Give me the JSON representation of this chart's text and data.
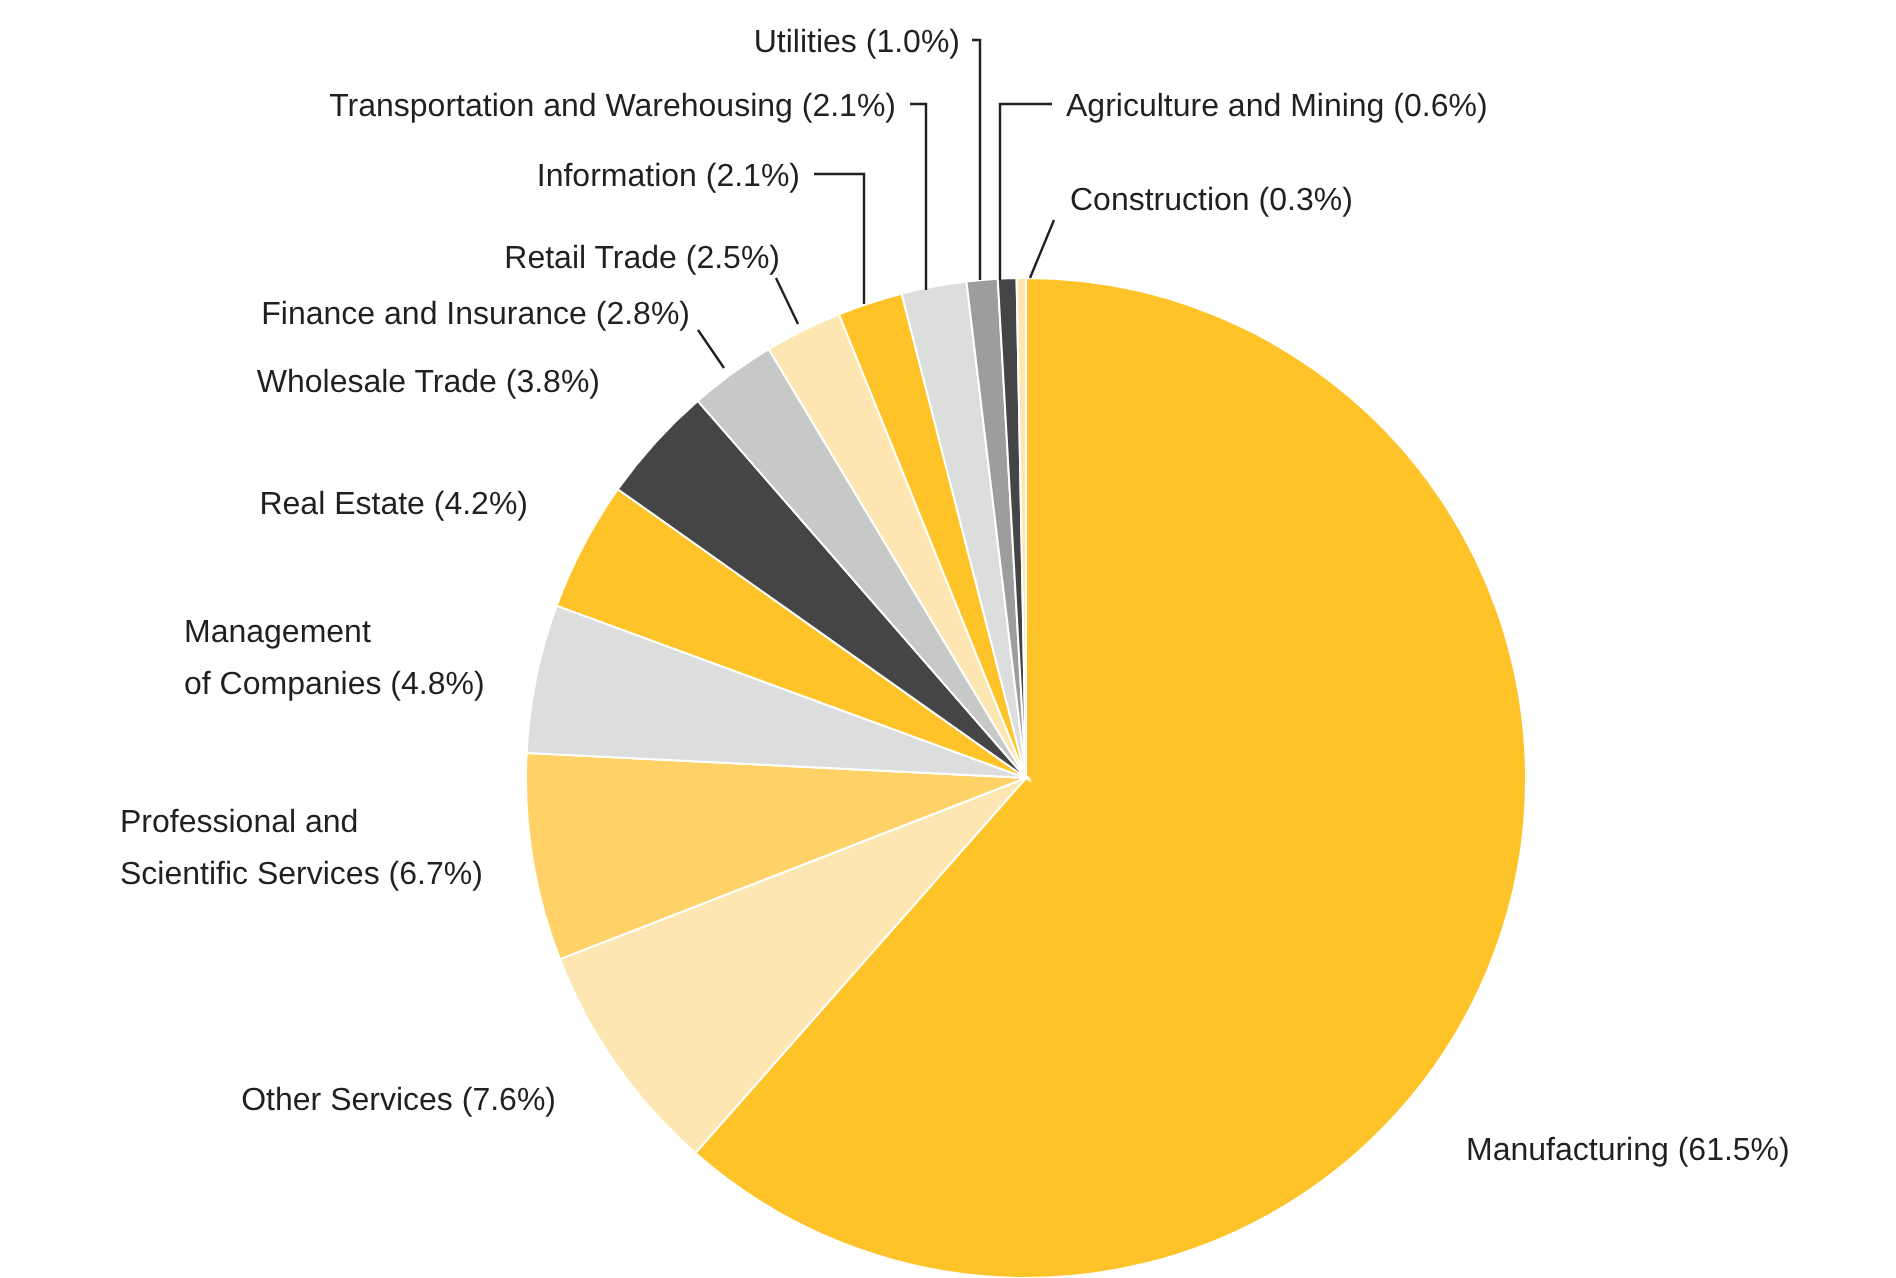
{
  "chart_data": {
    "type": "pie",
    "categories": [
      "Manufacturing",
      "Other Services",
      "Professional and Scientific Services",
      "Management of Companies",
      "Real Estate",
      "Wholesale Trade",
      "Finance and Insurance",
      "Retail Trade",
      "Information",
      "Transportation and Warehousing",
      "Utilities",
      "Agriculture and Mining",
      "Construction"
    ],
    "values": [
      61.5,
      7.6,
      6.7,
      4.8,
      4.2,
      3.8,
      2.8,
      2.5,
      2.1,
      2.1,
      1.0,
      0.6,
      0.3
    ],
    "value_labels": [
      "(61.5%)",
      "(7.6%)",
      "(6.7%)",
      "(4.8%)",
      "(4.2%)",
      "(3.8%)",
      "(2.8%)",
      "(2.5%)",
      "(2.1%)",
      "(2.1%)",
      "(1.0%)",
      "(0.6%)",
      "(0.3%)"
    ],
    "colors": [
      "#fdc329",
      "#fee6b3",
      "#fed266",
      "#dcdddd",
      "#fdc329",
      "#454547",
      "#c7c8c8",
      "#fee6b3",
      "#fdc329",
      "#dcdddd",
      "#9d9d9d",
      "#454547",
      "#fee6b3"
    ],
    "legend": false
  }
}
